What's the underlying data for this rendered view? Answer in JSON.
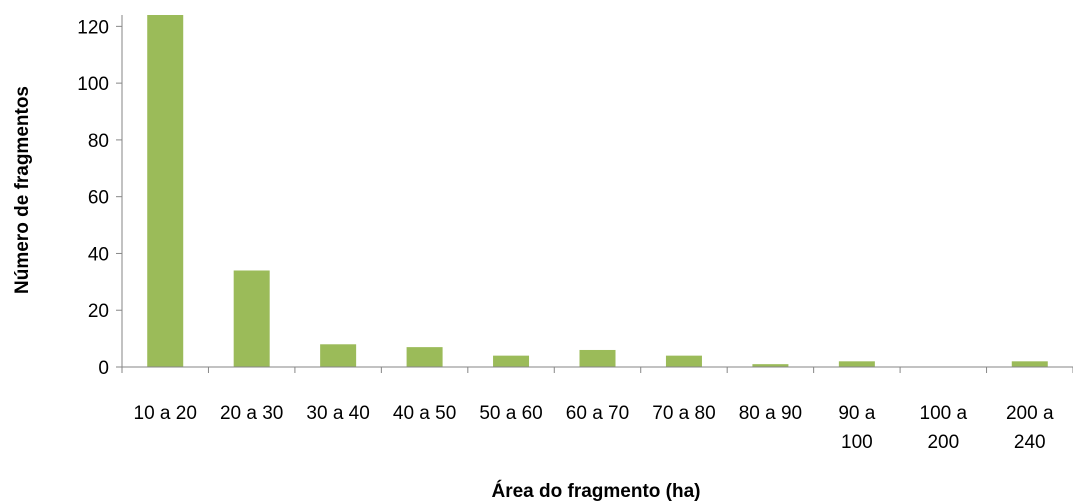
{
  "chart_data": {
    "type": "bar",
    "categories": [
      [
        "10 a 20"
      ],
      [
        "20 a 30"
      ],
      [
        "30 a 40"
      ],
      [
        "40 a 50"
      ],
      [
        "50 a 60"
      ],
      [
        "60 a 70"
      ],
      [
        "70 a 80"
      ],
      [
        "80 a 90"
      ],
      [
        "90 a",
        "100"
      ],
      [
        "100 a",
        "200"
      ],
      [
        "200 a",
        "240"
      ]
    ],
    "values": [
      124,
      34,
      8,
      7,
      4,
      6,
      4,
      1,
      2,
      0,
      2
    ],
    "xlabel": "Área do fragmento (ha)",
    "ylabel": "Número de fragmentos",
    "ylim": [
      0,
      124
    ],
    "yticks": [
      "0",
      "20",
      "40",
      "60",
      "80",
      "100",
      "120"
    ],
    "bar_color": "#9BBB59",
    "axis_color": "#868686",
    "grid": false,
    "legend": "none"
  }
}
